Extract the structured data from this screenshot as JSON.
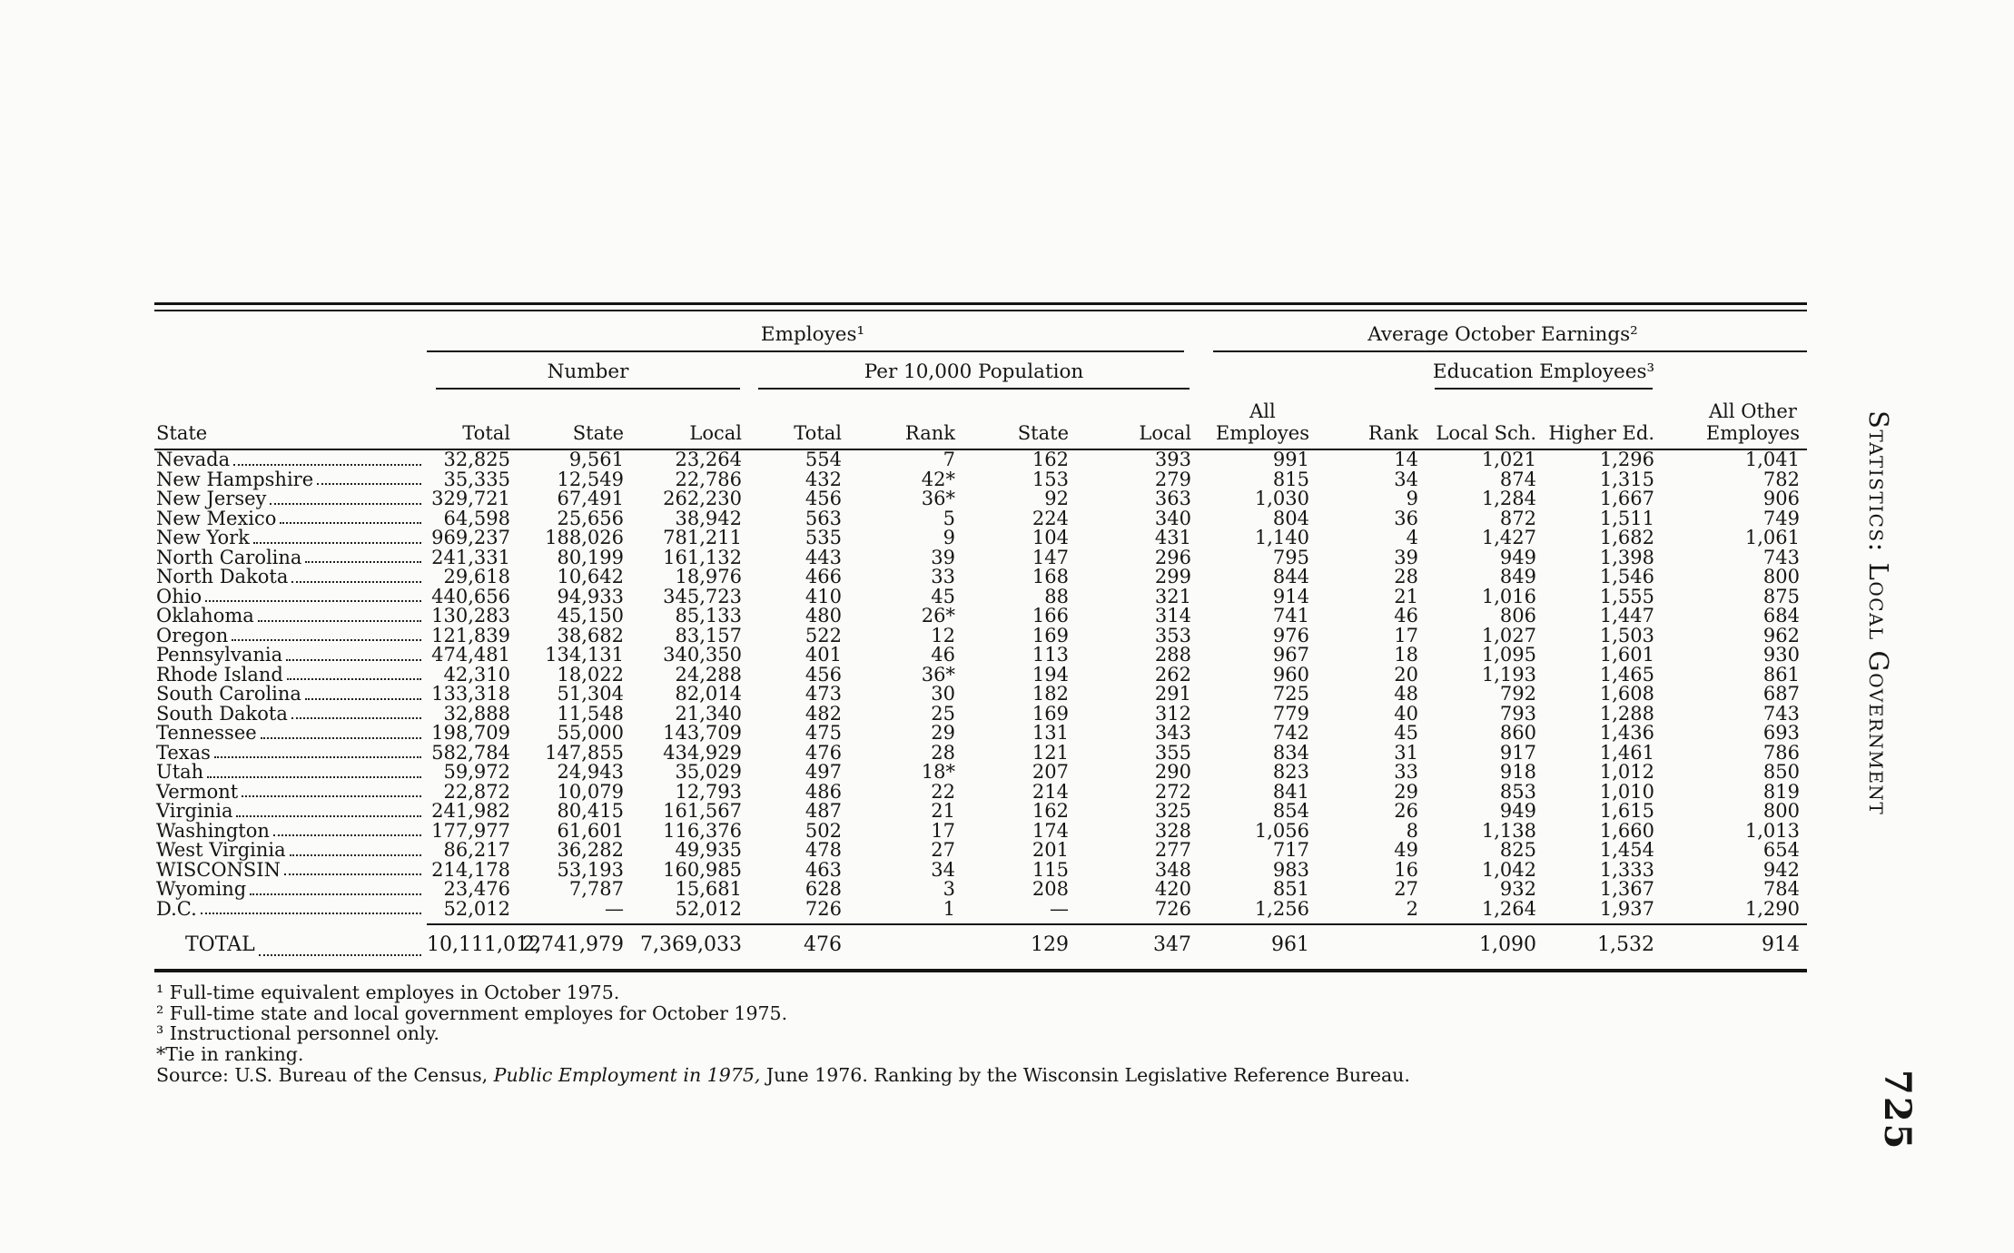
{
  "page": {
    "sidebar_title": "Statistics: Local Government",
    "page_number": "725"
  },
  "table": {
    "group1": {
      "employes": "Employes¹",
      "earnings": "Average October Earnings²"
    },
    "group2": {
      "number": "Number",
      "per_population": "Per 10,000 Population",
      "education": "Education Employees³"
    },
    "columns": {
      "state": "State",
      "num_total": "Total",
      "num_state": "State",
      "num_local": "Local",
      "pop_total": "Total",
      "pop_rank": "Rank",
      "pop_state": "State",
      "pop_local": "Local",
      "all_employes": "All\nEmployes",
      "rank": "Rank",
      "local_sch": "Local Sch.",
      "higher_ed": "Higher Ed.",
      "all_other": "All Other\nEmployes"
    },
    "rows": [
      {
        "state": "Nevada",
        "values": [
          "32,825",
          "9,561",
          "23,264",
          "554",
          "7",
          "162",
          "393",
          "991",
          "14",
          "1,021",
          "1,296",
          "1,041"
        ]
      },
      {
        "state": "New Hampshire",
        "values": [
          "35,335",
          "12,549",
          "22,786",
          "432",
          "42*",
          "153",
          "279",
          "815",
          "34",
          "874",
          "1,315",
          "782"
        ]
      },
      {
        "state": "New Jersey",
        "values": [
          "329,721",
          "67,491",
          "262,230",
          "456",
          "36*",
          "92",
          "363",
          "1,030",
          "9",
          "1,284",
          "1,667",
          "906"
        ]
      },
      {
        "state": "New Mexico",
        "values": [
          "64,598",
          "25,656",
          "38,942",
          "563",
          "5",
          "224",
          "340",
          "804",
          "36",
          "872",
          "1,511",
          "749"
        ]
      },
      {
        "state": "New York",
        "values": [
          "969,237",
          "188,026",
          "781,211",
          "535",
          "9",
          "104",
          "431",
          "1,140",
          "4",
          "1,427",
          "1,682",
          "1,061"
        ]
      },
      {
        "state": "North Carolina",
        "values": [
          "241,331",
          "80,199",
          "161,132",
          "443",
          "39",
          "147",
          "296",
          "795",
          "39",
          "949",
          "1,398",
          "743"
        ]
      },
      {
        "state": "North Dakota",
        "values": [
          "29,618",
          "10,642",
          "18,976",
          "466",
          "33",
          "168",
          "299",
          "844",
          "28",
          "849",
          "1,546",
          "800"
        ]
      },
      {
        "state": "Ohio",
        "values": [
          "440,656",
          "94,933",
          "345,723",
          "410",
          "45",
          "88",
          "321",
          "914",
          "21",
          "1,016",
          "1,555",
          "875"
        ]
      },
      {
        "state": "Oklahoma",
        "values": [
          "130,283",
          "45,150",
          "85,133",
          "480",
          "26*",
          "166",
          "314",
          "741",
          "46",
          "806",
          "1,447",
          "684"
        ]
      },
      {
        "state": "Oregon",
        "values": [
          "121,839",
          "38,682",
          "83,157",
          "522",
          "12",
          "169",
          "353",
          "976",
          "17",
          "1,027",
          "1,503",
          "962"
        ]
      },
      {
        "state": "Pennsylvania",
        "values": [
          "474,481",
          "134,131",
          "340,350",
          "401",
          "46",
          "113",
          "288",
          "967",
          "18",
          "1,095",
          "1,601",
          "930"
        ]
      },
      {
        "state": "Rhode Island",
        "values": [
          "42,310",
          "18,022",
          "24,288",
          "456",
          "36*",
          "194",
          "262",
          "960",
          "20",
          "1,193",
          "1,465",
          "861"
        ]
      },
      {
        "state": "South Carolina",
        "values": [
          "133,318",
          "51,304",
          "82,014",
          "473",
          "30",
          "182",
          "291",
          "725",
          "48",
          "792",
          "1,608",
          "687"
        ]
      },
      {
        "state": "South Dakota",
        "values": [
          "32,888",
          "11,548",
          "21,340",
          "482",
          "25",
          "169",
          "312",
          "779",
          "40",
          "793",
          "1,288",
          "743"
        ]
      },
      {
        "state": "Tennessee",
        "values": [
          "198,709",
          "55,000",
          "143,709",
          "475",
          "29",
          "131",
          "343",
          "742",
          "45",
          "860",
          "1,436",
          "693"
        ]
      },
      {
        "state": "Texas",
        "values": [
          "582,784",
          "147,855",
          "434,929",
          "476",
          "28",
          "121",
          "355",
          "834",
          "31",
          "917",
          "1,461",
          "786"
        ]
      },
      {
        "state": "Utah",
        "values": [
          "59,972",
          "24,943",
          "35,029",
          "497",
          "18*",
          "207",
          "290",
          "823",
          "33",
          "918",
          "1,012",
          "850"
        ]
      },
      {
        "state": "Vermont",
        "values": [
          "22,872",
          "10,079",
          "12,793",
          "486",
          "22",
          "214",
          "272",
          "841",
          "29",
          "853",
          "1,010",
          "819"
        ]
      },
      {
        "state": "Virginia",
        "values": [
          "241,982",
          "80,415",
          "161,567",
          "487",
          "21",
          "162",
          "325",
          "854",
          "26",
          "949",
          "1,615",
          "800"
        ]
      },
      {
        "state": "Washington",
        "values": [
          "177,977",
          "61,601",
          "116,376",
          "502",
          "17",
          "174",
          "328",
          "1,056",
          "8",
          "1,138",
          "1,660",
          "1,013"
        ]
      },
      {
        "state": "West Virginia",
        "values": [
          "86,217",
          "36,282",
          "49,935",
          "478",
          "27",
          "201",
          "277",
          "717",
          "49",
          "825",
          "1,454",
          "654"
        ]
      },
      {
        "state": "WISCONSIN",
        "values": [
          "214,178",
          "53,193",
          "160,985",
          "463",
          "34",
          "115",
          "348",
          "983",
          "16",
          "1,042",
          "1,333",
          "942"
        ]
      },
      {
        "state": "Wyoming",
        "values": [
          "23,476",
          "7,787",
          "15,681",
          "628",
          "3",
          "208",
          "420",
          "851",
          "27",
          "932",
          "1,367",
          "784"
        ]
      },
      {
        "state": "D.C.",
        "values": [
          "52,012",
          "—",
          "52,012",
          "726",
          "1",
          "—",
          "726",
          "1,256",
          "2",
          "1,264",
          "1,937",
          "1,290"
        ]
      }
    ],
    "total": {
      "state": "TOTAL",
      "values": [
        "10,111,012",
        "2,741,979",
        "7,369,033",
        "476",
        "",
        "129",
        "347",
        "961",
        "",
        "1,090",
        "1,532",
        "914"
      ]
    }
  },
  "footnotes": [
    "¹ Full-time equivalent employes in October 1975.",
    "² Full-time state and local government employes for October 1975.",
    "³ Instructional personnel only.",
    "*Tie in ranking."
  ],
  "source": {
    "prefix": "Source:  U.S. Bureau of the Census, ",
    "italic": "Public Employment in 1975,",
    "suffix": " June 1976. Ranking by the Wisconsin Legislative Reference Bureau."
  }
}
